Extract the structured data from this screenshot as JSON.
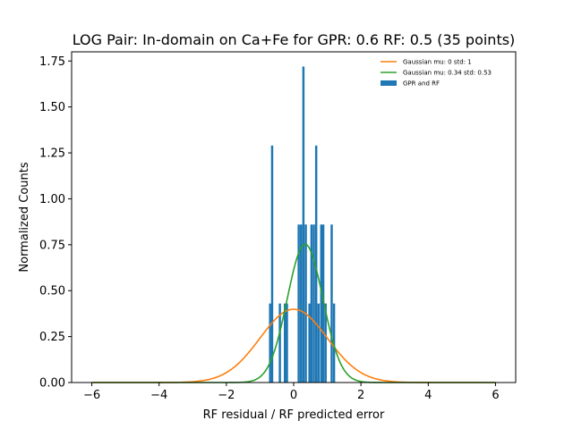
{
  "chart_data": {
    "type": "bar",
    "title": "LOG Pair: In-domain on Ca+Fe for GPR: 0.6 RF: 0.5 (35 points)",
    "xlabel": "RF residual / RF predicted error",
    "ylabel": "Normalized Counts",
    "xlim": [
      -6.6,
      6.6
    ],
    "ylim": [
      0,
      1.8
    ],
    "xticks": [
      -6,
      -4,
      -2,
      0,
      2,
      4,
      6
    ],
    "yticks": [
      0.0,
      0.25,
      0.5,
      0.75,
      1.0,
      1.25,
      1.5,
      1.75
    ],
    "xtick_labels": [
      "−6",
      "−4",
      "−2",
      "0",
      "2",
      "4",
      "6"
    ],
    "ytick_labels": [
      "0.00",
      "0.25",
      "0.50",
      "0.75",
      "1.00",
      "1.25",
      "1.50",
      "1.75"
    ],
    "grid": false,
    "legend_position": "top-right",
    "histogram": {
      "name": "GPR and RF",
      "color": "#1f77b4",
      "bin_width": 0.066,
      "bins": [
        {
          "x": -0.7,
          "y": 0.43
        },
        {
          "x": -0.64,
          "y": 1.29
        },
        {
          "x": -0.41,
          "y": 0.43
        },
        {
          "x": -0.26,
          "y": 0.43
        },
        {
          "x": -0.2,
          "y": 0.43
        },
        {
          "x": 0.15,
          "y": 0.86
        },
        {
          "x": 0.22,
          "y": 0.86
        },
        {
          "x": 0.29,
          "y": 1.72
        },
        {
          "x": 0.36,
          "y": 0.86
        },
        {
          "x": 0.47,
          "y": 0.43
        },
        {
          "x": 0.53,
          "y": 0.86
        },
        {
          "x": 0.6,
          "y": 0.86
        },
        {
          "x": 0.67,
          "y": 1.29
        },
        {
          "x": 0.74,
          "y": 0.43
        },
        {
          "x": 0.82,
          "y": 0.86
        },
        {
          "x": 0.88,
          "y": 0.86
        },
        {
          "x": 0.95,
          "y": 0.43
        },
        {
          "x": 1.13,
          "y": 0.86
        },
        {
          "x": 1.2,
          "y": 0.43
        }
      ]
    },
    "series": [
      {
        "name": "Gaussian mu: 0 std: 1",
        "type": "line",
        "mu": 0,
        "std": 1,
        "color": "#ff7f0e"
      },
      {
        "name": "Gaussian mu: 0.34 std: 0.53",
        "type": "line",
        "mu": 0.34,
        "std": 0.53,
        "color": "#2ca02c"
      }
    ],
    "curve_x_range": [
      -6,
      6
    ]
  }
}
